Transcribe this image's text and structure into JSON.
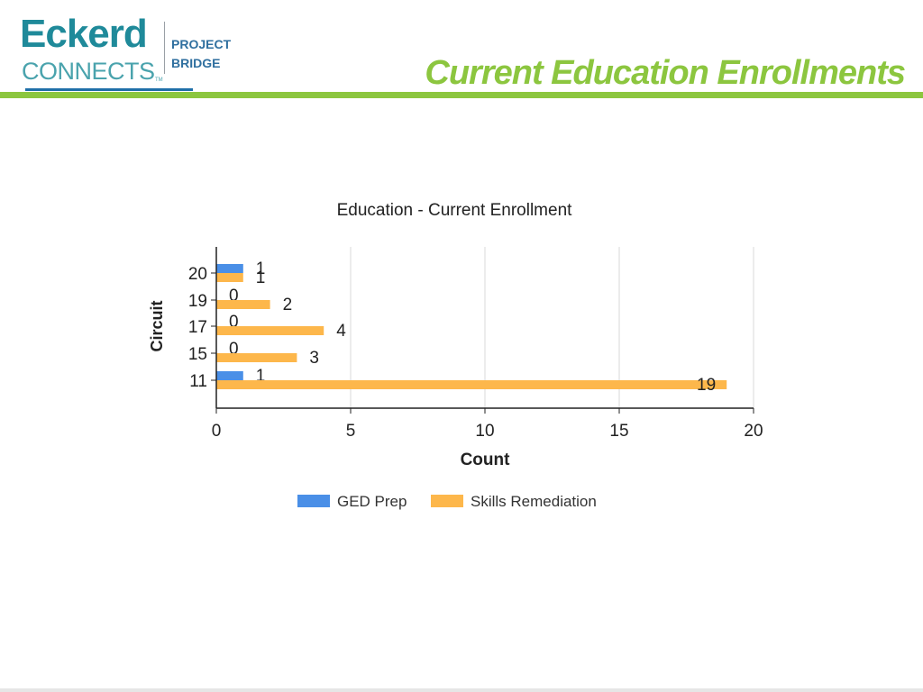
{
  "header": {
    "logo": {
      "word1": "Eckerd",
      "word2": "CONNECTS",
      "trademark": "TM",
      "sub_line1": "PROJECT",
      "sub_line2": "BRIDGE"
    },
    "slide_title": "Current Education Enrollments"
  },
  "colors": {
    "accent_green": "#8cc63f",
    "ged_prep": "#4a8fe7",
    "skills_remediation": "#fdb74b"
  },
  "chart_data": {
    "type": "bar",
    "orientation": "horizontal",
    "title": "Education - Current Enrollment",
    "xlabel": "Count",
    "ylabel": "Circuit",
    "categories": [
      "20",
      "19",
      "17",
      "15",
      "11"
    ],
    "series": [
      {
        "name": "GED Prep",
        "color": "#4a8fe7",
        "values": [
          1,
          0,
          0,
          0,
          1
        ]
      },
      {
        "name": "Skills Remediation",
        "color": "#fdb74b",
        "values": [
          1,
          2,
          4,
          3,
          19
        ]
      }
    ],
    "xlim": [
      0,
      20
    ],
    "xticks": [
      "0",
      "5",
      "10",
      "15",
      "20"
    ],
    "grid": "vertical",
    "legend": "bottom",
    "data_labels": true
  }
}
